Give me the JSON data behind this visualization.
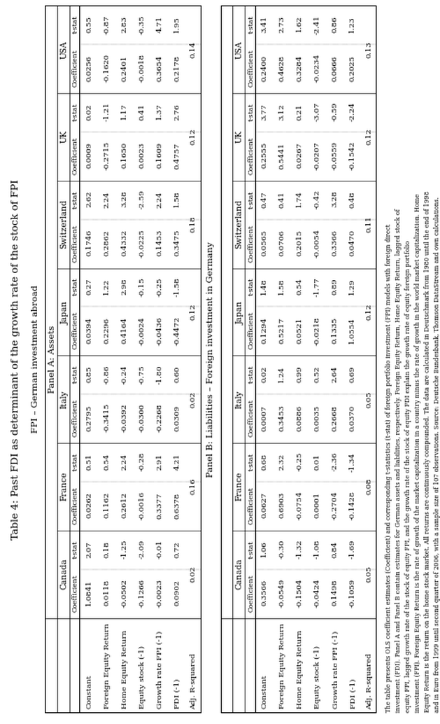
{
  "title": "Table 4: Past FDI as determinant of the growth rate of the stock of FPI",
  "subtitle1": "FPI – German investment abroad",
  "subtitle2": "Panel A: Assets",
  "subtitle3": "Panel B: Liabilities – Foreign investment in Germany",
  "row_labels": [
    "Constant",
    "Foreign Equity Return",
    "Home Equity Return",
    "Equity stock (-1)",
    "Growth rate FPI (-1)",
    "FDI (-1)",
    "Adj. R-squared"
  ],
  "countries": [
    "Canada",
    "France",
    "Italy",
    "Japan",
    "Switzerland",
    "UK",
    "USA"
  ],
  "panel_a": {
    "Canada": {
      "coef": [
        1.0841,
        0.0118,
        -0.0502,
        -0.1266,
        -0.0023,
        0.0902,
        0.02
      ],
      "tstat": [
        2.07,
        0.18,
        -1.25,
        -2.09,
        -0.01,
        0.72,
        null
      ]
    },
    "France": {
      "coef": [
        0.0262,
        0.1162,
        0.2612,
        -0.0016,
        0.3377,
        0.6378,
        0.16
      ],
      "tstat": [
        0.51,
        0.54,
        2.24,
        -0.28,
        2.91,
        4.21,
        null
      ]
    },
    "Italy": {
      "coef": [
        0.2795,
        -0.3415,
        -0.0392,
        -0.03,
        -0.2268,
        0.0309,
        0.02
      ],
      "tstat": [
        0.85,
        -0.86,
        -0.24,
        -0.75,
        -1.8,
        0.6,
        null
      ]
    },
    "Japan": {
      "coef": [
        0.0394,
        0.2296,
        0.4164,
        -0.0024,
        -0.0436,
        -0.4472,
        0.12
      ],
      "tstat": [
        0.27,
        1.22,
        2.98,
        -0.15,
        -0.25,
        -1.58,
        null
      ]
    },
    "Switzerland": {
      "coef": [
        0.1746,
        0.2862,
        0.4332,
        -0.0225,
        0.1453,
        0.3475,
        0.18
      ],
      "tstat": [
        2.62,
        2.24,
        3.28,
        -2.59,
        2.24,
        1.58,
        null
      ]
    },
    "UK": {
      "coef": [
        0.0009,
        -0.2715,
        0.165,
        0.0023,
        0.1609,
        0.4757,
        0.12
      ],
      "tstat": [
        0.02,
        -1.21,
        1.17,
        0.41,
        1.37,
        2.76,
        null
      ]
    },
    "USA": {
      "coef": [
        0.0256,
        -0.162,
        0.2401,
        -0.0018,
        0.3654,
        0.2178,
        0.14
      ],
      "tstat": [
        0.55,
        -0.87,
        2.83,
        -0.35,
        4.71,
        1.95,
        null
      ]
    }
  },
  "panel_b": {
    "Canada": {
      "coef": [
        0.3566,
        -0.0549,
        -0.1504,
        -0.0424,
        0.1498,
        -0.1059,
        0.05
      ],
      "tstat": [
        1.06,
        -0.3,
        -1.32,
        -1.08,
        0.84,
        -1.69,
        null
      ]
    },
    "France": {
      "coef": [
        0.0627,
        0.6903,
        -0.0754,
        0.0001,
        -0.2704,
        -0.1428,
        0.08
      ],
      "tstat": [
        0.68,
        2.32,
        -0.25,
        0.01,
        -2.36,
        -1.34,
        null
      ]
    },
    "Italy": {
      "coef": [
        0.0007,
        0.3453,
        0.0886,
        0.0035,
        0.2668,
        0.037,
        0.05
      ],
      "tstat": [
        0.02,
        1.24,
        0.99,
        0.52,
        2.64,
        0.69,
        null
      ]
    },
    "Japan": {
      "coef": [
        0.1294,
        0.5217,
        0.0521,
        -0.0218,
        0.1335,
        1.0554,
        0.12
      ],
      "tstat": [
        1.48,
        1.58,
        0.54,
        -1.77,
        0.89,
        1.29,
        null
      ]
    },
    "Switzerland": {
      "coef": [
        0.0565,
        0.0706,
        0.2015,
        -0.0054,
        0.3366,
        0.047,
        0.11
      ],
      "tstat": [
        0.47,
        0.41,
        1.74,
        -0.42,
        3.28,
        0.48,
        null
      ]
    },
    "UK": {
      "coef": [
        0.2555,
        0.5441,
        0.0267,
        -0.0207,
        -0.0559,
        -0.1542,
        0.12
      ],
      "tstat": [
        3.77,
        3.12,
        0.21,
        -3.07,
        -0.59,
        -2.24,
        null
      ]
    },
    "USA": {
      "coef": [
        0.24,
        0.4628,
        0.3284,
        -0.0234,
        0.0666,
        0.2025,
        0.13
      ],
      "tstat": [
        3.41,
        2.73,
        1.62,
        -2.41,
        0.86,
        1.23,
        null
      ]
    }
  },
  "footnote_lines": [
    "The table presents OLS coefficient estimates (Coefficient) and corresponding t-statistics (t-stat) of foreign portfolio investment (FPI) models with foreign direct",
    "investment (FDI). Panel A and Panel B contain estimates for German assets and liabilities, respectively. Foreign Equity Return, Home Equity Return, lagged stock of",
    "equity FPI, lagged growth rate of the stock of equity FPI, and the growth rate of the stock of equity FDI explain the growth rate of equity foreign portfolio",
    "investment (FPI). Foreign Equity Return is the rate of growth of the market capitalization in a country minus the rate of growth in the world market capitalization. Home",
    "Equity Return is the return on the home stock market. All returns are continuously compounded. The data are calculated in Deutschmark from 1980 until the end of 1998",
    "and in Euro from 1999 until second quarter of 2006, with a sample size of 107 observations. Source: Deutsche Bundesbank, Thomson DataStream and own calculations."
  ],
  "bg_color": "#ffffff",
  "line_color": "#000000"
}
